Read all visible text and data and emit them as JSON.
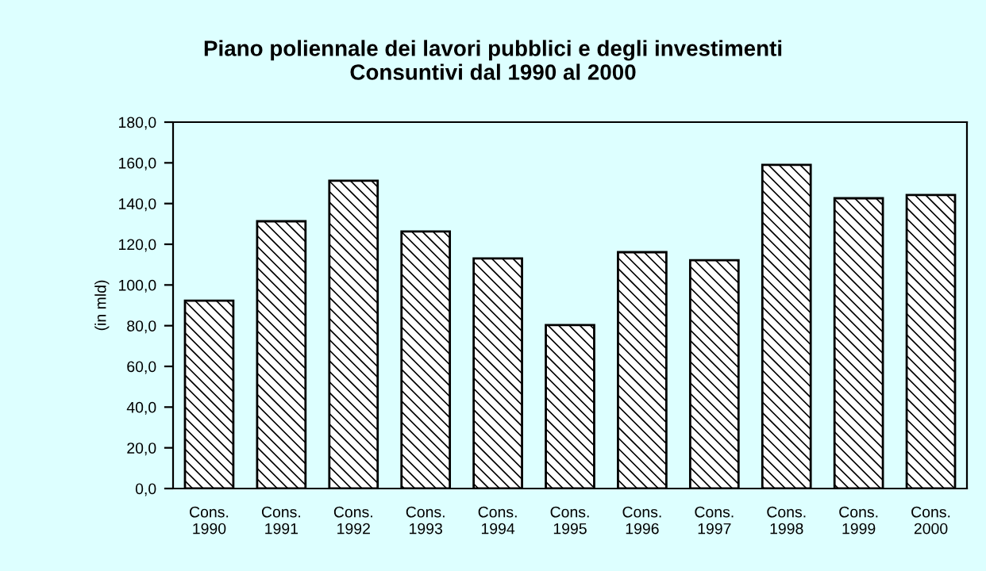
{
  "chart_data": {
    "type": "bar",
    "title": "Piano poliennale dei lavori pubblici e degli investimenti\nConsuntivi dal 1990 al 2000",
    "ylabel": "(in mld)",
    "categories": [
      "Cons.\n1990",
      "Cons.\n1991",
      "Cons.\n1992",
      "Cons.\n1993",
      "Cons.\n1994",
      "Cons.\n1995",
      "Cons.\n1996",
      "Cons.\n1997",
      "Cons.\n1998",
      "Cons.\n1999",
      "Cons.\n2000"
    ],
    "values": [
      92.3,
      131.3,
      151.2,
      126.3,
      113.0,
      80.3,
      116.1,
      112.2,
      159.0,
      142.6,
      144.2
    ],
    "color": "#000000",
    "ylim": [
      0,
      180
    ],
    "yticks": [
      {
        "value": 0,
        "label": "0,0"
      },
      {
        "value": 20,
        "label": "20,0"
      },
      {
        "value": 40,
        "label": "40,0"
      },
      {
        "value": 60,
        "label": "60,0"
      },
      {
        "value": 80,
        "label": "80,0"
      },
      {
        "value": 100,
        "label": "100,0"
      },
      {
        "value": 120,
        "label": "120,0"
      },
      {
        "value": 140,
        "label": "140,0"
      },
      {
        "value": 160,
        "label": "160,0"
      },
      {
        "value": 180,
        "label": "180,0"
      }
    ],
    "grid": false,
    "legend": false
  }
}
